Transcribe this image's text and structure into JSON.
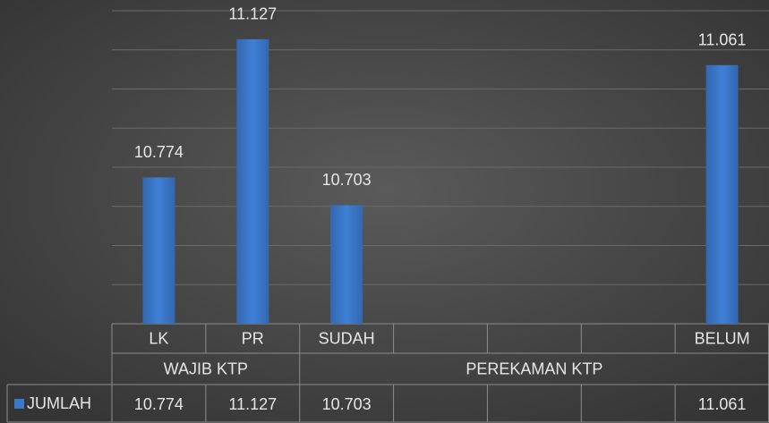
{
  "chart_data": {
    "type": "bar",
    "categories": [
      "LK",
      "PR",
      "SUDAH",
      null,
      null,
      null,
      "BELUM"
    ],
    "groups": [
      {
        "name": "WAJIB KTP",
        "span": 2
      },
      {
        "name": "PEREKAMAN KTP",
        "span": 5
      }
    ],
    "series": [
      {
        "name": "JUMLAH",
        "color": "#3a78c9",
        "values": [
          10.774,
          11.127,
          10.703,
          null,
          null,
          null,
          11.061
        ]
      }
    ],
    "ylim": [
      10.4,
      11.2
    ],
    "yticks": [
      10.4,
      10.5,
      10.6,
      10.7,
      10.8,
      10.9,
      11.0,
      11.1,
      11.2
    ],
    "grid": true
  }
}
